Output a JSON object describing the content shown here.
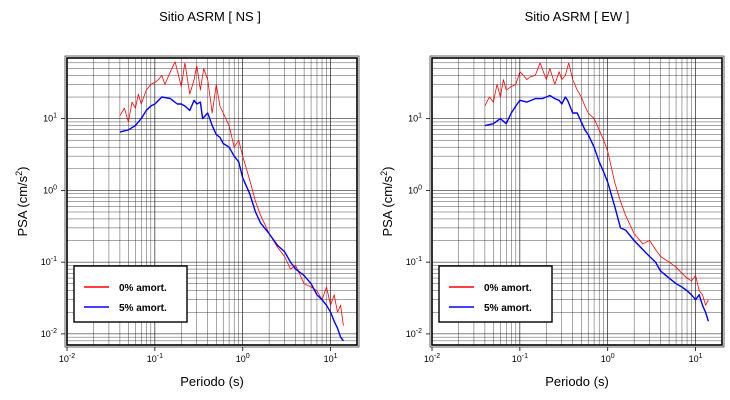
{
  "chart_data": [
    {
      "type": "line",
      "title": "Sitio ASRM [ NS ]",
      "xlabel": "Periodo (s)",
      "ylabel_main": "PSA (cm/s",
      "ylabel_sup": "2",
      "ylabel_close": ")",
      "x_scale": "log",
      "y_scale": "log",
      "xlim": [
        0.01,
        20
      ],
      "ylim": [
        0.007,
        70
      ],
      "x_ticks": [
        {
          "value": 0.01,
          "base": "10",
          "exp": "-2"
        },
        {
          "value": 0.1,
          "base": "10",
          "exp": "-1"
        },
        {
          "value": 1,
          "base": "10",
          "exp": "0"
        },
        {
          "value": 10,
          "base": "10",
          "exp": "1"
        }
      ],
      "y_ticks": [
        {
          "value": 0.01,
          "base": "10",
          "exp": "-2"
        },
        {
          "value": 0.1,
          "base": "10",
          "exp": "-1"
        },
        {
          "value": 1,
          "base": "10",
          "exp": "0"
        },
        {
          "value": 10,
          "base": "10",
          "exp": "1"
        }
      ],
      "grid": true,
      "legend_position": "bottom-left",
      "series": [
        {
          "name": "0% amort.",
          "color": "#ff0000",
          "x": [
            0.04,
            0.045,
            0.05,
            0.055,
            0.06,
            0.065,
            0.07,
            0.08,
            0.09,
            0.1,
            0.11,
            0.12,
            0.13,
            0.15,
            0.17,
            0.2,
            0.22,
            0.25,
            0.28,
            0.3,
            0.33,
            0.36,
            0.4,
            0.45,
            0.5,
            0.55,
            0.6,
            0.7,
            0.8,
            0.9,
            1.0,
            1.2,
            1.4,
            1.6,
            2.0,
            2.5,
            3.0,
            3.5,
            4.0,
            5.0,
            6.0,
            7.0,
            8.0,
            9.0,
            10.0,
            11.0,
            12.0,
            13.0,
            14.0
          ],
          "y": [
            11,
            14,
            9,
            17,
            14,
            22,
            16,
            25,
            30,
            32,
            35,
            40,
            30,
            45,
            62,
            28,
            60,
            22,
            35,
            55,
            25,
            50,
            35,
            12,
            30,
            15,
            12,
            8,
            4,
            5,
            3,
            1.4,
            0.7,
            0.45,
            0.25,
            0.16,
            0.12,
            0.08,
            0.09,
            0.05,
            0.045,
            0.04,
            0.03,
            0.045,
            0.025,
            0.035,
            0.02,
            0.025,
            0.013
          ]
        },
        {
          "name": "5% amort.",
          "color": "#0000ff",
          "x": [
            0.04,
            0.05,
            0.06,
            0.07,
            0.08,
            0.09,
            0.1,
            0.12,
            0.15,
            0.18,
            0.2,
            0.22,
            0.25,
            0.28,
            0.3,
            0.33,
            0.35,
            0.4,
            0.45,
            0.5,
            0.55,
            0.6,
            0.7,
            0.8,
            0.9,
            1.0,
            1.2,
            1.4,
            1.6,
            2.0,
            2.5,
            3.0,
            3.5,
            4.0,
            5.0,
            6.0,
            7.0,
            8.0,
            9.0,
            10.0,
            11.0,
            12.0,
            13.0,
            14.0
          ],
          "y": [
            6.5,
            7,
            8,
            10,
            13,
            15,
            16,
            20,
            19,
            16,
            16,
            15,
            13,
            18,
            16,
            17,
            10,
            12,
            8,
            6,
            5.5,
            4.5,
            4,
            3,
            2.5,
            1.5,
            0.9,
            0.5,
            0.35,
            0.25,
            0.17,
            0.14,
            0.1,
            0.08,
            0.065,
            0.05,
            0.035,
            0.03,
            0.025,
            0.02,
            0.015,
            0.012,
            0.009,
            0.008
          ]
        }
      ]
    },
    {
      "type": "line",
      "title": "Sitio ASRM [ EW ]",
      "xlabel": "Periodo (s)",
      "ylabel_main": "PSA (cm/s",
      "ylabel_sup": "2",
      "ylabel_close": ")",
      "x_scale": "log",
      "y_scale": "log",
      "xlim": [
        0.01,
        20
      ],
      "ylim": [
        0.007,
        70
      ],
      "x_ticks": [
        {
          "value": 0.01,
          "base": "10",
          "exp": "-2"
        },
        {
          "value": 0.1,
          "base": "10",
          "exp": "-1"
        },
        {
          "value": 1,
          "base": "10",
          "exp": "0"
        },
        {
          "value": 10,
          "base": "10",
          "exp": "1"
        }
      ],
      "y_ticks": [
        {
          "value": 0.01,
          "base": "10",
          "exp": "-2"
        },
        {
          "value": 0.1,
          "base": "10",
          "exp": "-1"
        },
        {
          "value": 1,
          "base": "10",
          "exp": "0"
        },
        {
          "value": 10,
          "base": "10",
          "exp": "1"
        }
      ],
      "grid": true,
      "legend_position": "bottom-left",
      "series": [
        {
          "name": "0% amort.",
          "color": "#ff0000",
          "x": [
            0.04,
            0.045,
            0.05,
            0.055,
            0.06,
            0.065,
            0.07,
            0.08,
            0.09,
            0.1,
            0.11,
            0.12,
            0.13,
            0.15,
            0.17,
            0.2,
            0.22,
            0.25,
            0.28,
            0.3,
            0.33,
            0.36,
            0.4,
            0.45,
            0.5,
            0.55,
            0.6,
            0.7,
            0.8,
            0.9,
            1.0,
            1.2,
            1.4,
            1.6,
            2.0,
            2.5,
            3.0,
            3.5,
            4.0,
            5.0,
            6.0,
            7.0,
            8.0,
            9.0,
            10.0,
            11.0,
            12.0,
            13.0,
            14.0
          ],
          "y": [
            15,
            20,
            17,
            30,
            20,
            35,
            25,
            28,
            30,
            45,
            40,
            35,
            38,
            40,
            60,
            35,
            50,
            30,
            45,
            35,
            40,
            60,
            35,
            25,
            20,
            15,
            12,
            10,
            7,
            5,
            3.5,
            1.3,
            0.7,
            0.45,
            0.25,
            0.18,
            0.2,
            0.15,
            0.12,
            0.1,
            0.085,
            0.07,
            0.06,
            0.055,
            0.065,
            0.04,
            0.035,
            0.025,
            0.03
          ]
        },
        {
          "name": "5% amort.",
          "color": "#0000ff",
          "x": [
            0.04,
            0.05,
            0.06,
            0.07,
            0.08,
            0.09,
            0.1,
            0.12,
            0.15,
            0.18,
            0.2,
            0.22,
            0.25,
            0.28,
            0.3,
            0.33,
            0.35,
            0.4,
            0.45,
            0.5,
            0.55,
            0.6,
            0.7,
            0.8,
            0.9,
            1.0,
            1.2,
            1.4,
            1.6,
            2.0,
            2.5,
            3.0,
            3.5,
            4.0,
            5.0,
            6.0,
            7.0,
            8.0,
            9.0,
            10.0,
            11.0,
            12.0,
            13.0,
            14.0
          ],
          "y": [
            8,
            8.5,
            10,
            8.5,
            12,
            15,
            18,
            17,
            19,
            19,
            20,
            21,
            19,
            18,
            16,
            20,
            18,
            12,
            12,
            9,
            7,
            6,
            4,
            2.5,
            1.8,
            1.3,
            0.6,
            0.3,
            0.28,
            0.2,
            0.15,
            0.12,
            0.1,
            0.075,
            0.06,
            0.05,
            0.045,
            0.04,
            0.035,
            0.03,
            0.035,
            0.025,
            0.02,
            0.015
          ]
        }
      ]
    }
  ]
}
